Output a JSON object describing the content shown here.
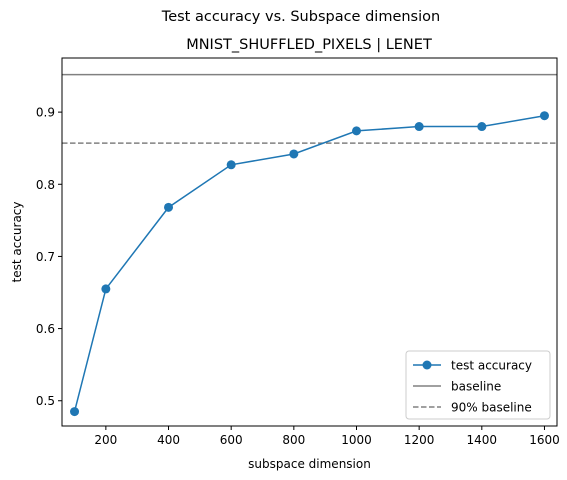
{
  "chart_data": {
    "type": "line",
    "suptitle": "Test accuracy vs. Subspace dimension",
    "title": "MNIST_SHUFFLED_PIXELS | LENET",
    "xlabel": "subspace dimension",
    "ylabel": "test accuracy",
    "xlim": [
      60,
      1640
    ],
    "ylim": [
      0.465,
      0.975
    ],
    "xticks": [
      200,
      400,
      600,
      800,
      1000,
      1200,
      1400,
      1600
    ],
    "yticks": [
      0.5,
      0.6,
      0.7,
      0.8,
      0.9
    ],
    "ytick_labels": [
      "0.5",
      "0.6",
      "0.7",
      "0.8",
      "0.9"
    ],
    "grid": false,
    "legend_position": "lower right",
    "series": [
      {
        "name": "test accuracy",
        "color": "#1f77b4",
        "marker": "circle",
        "x": [
          100,
          200,
          400,
          600,
          800,
          1000,
          1200,
          1400,
          1600
        ],
        "y": [
          0.485,
          0.655,
          0.768,
          0.827,
          0.842,
          0.874,
          0.88,
          0.88,
          0.895
        ]
      }
    ],
    "hlines": [
      {
        "name": "baseline",
        "y": 0.952,
        "color": "#808080",
        "style": "solid"
      },
      {
        "name": "90% baseline",
        "y": 0.857,
        "color": "#808080",
        "style": "dashed"
      }
    ]
  }
}
